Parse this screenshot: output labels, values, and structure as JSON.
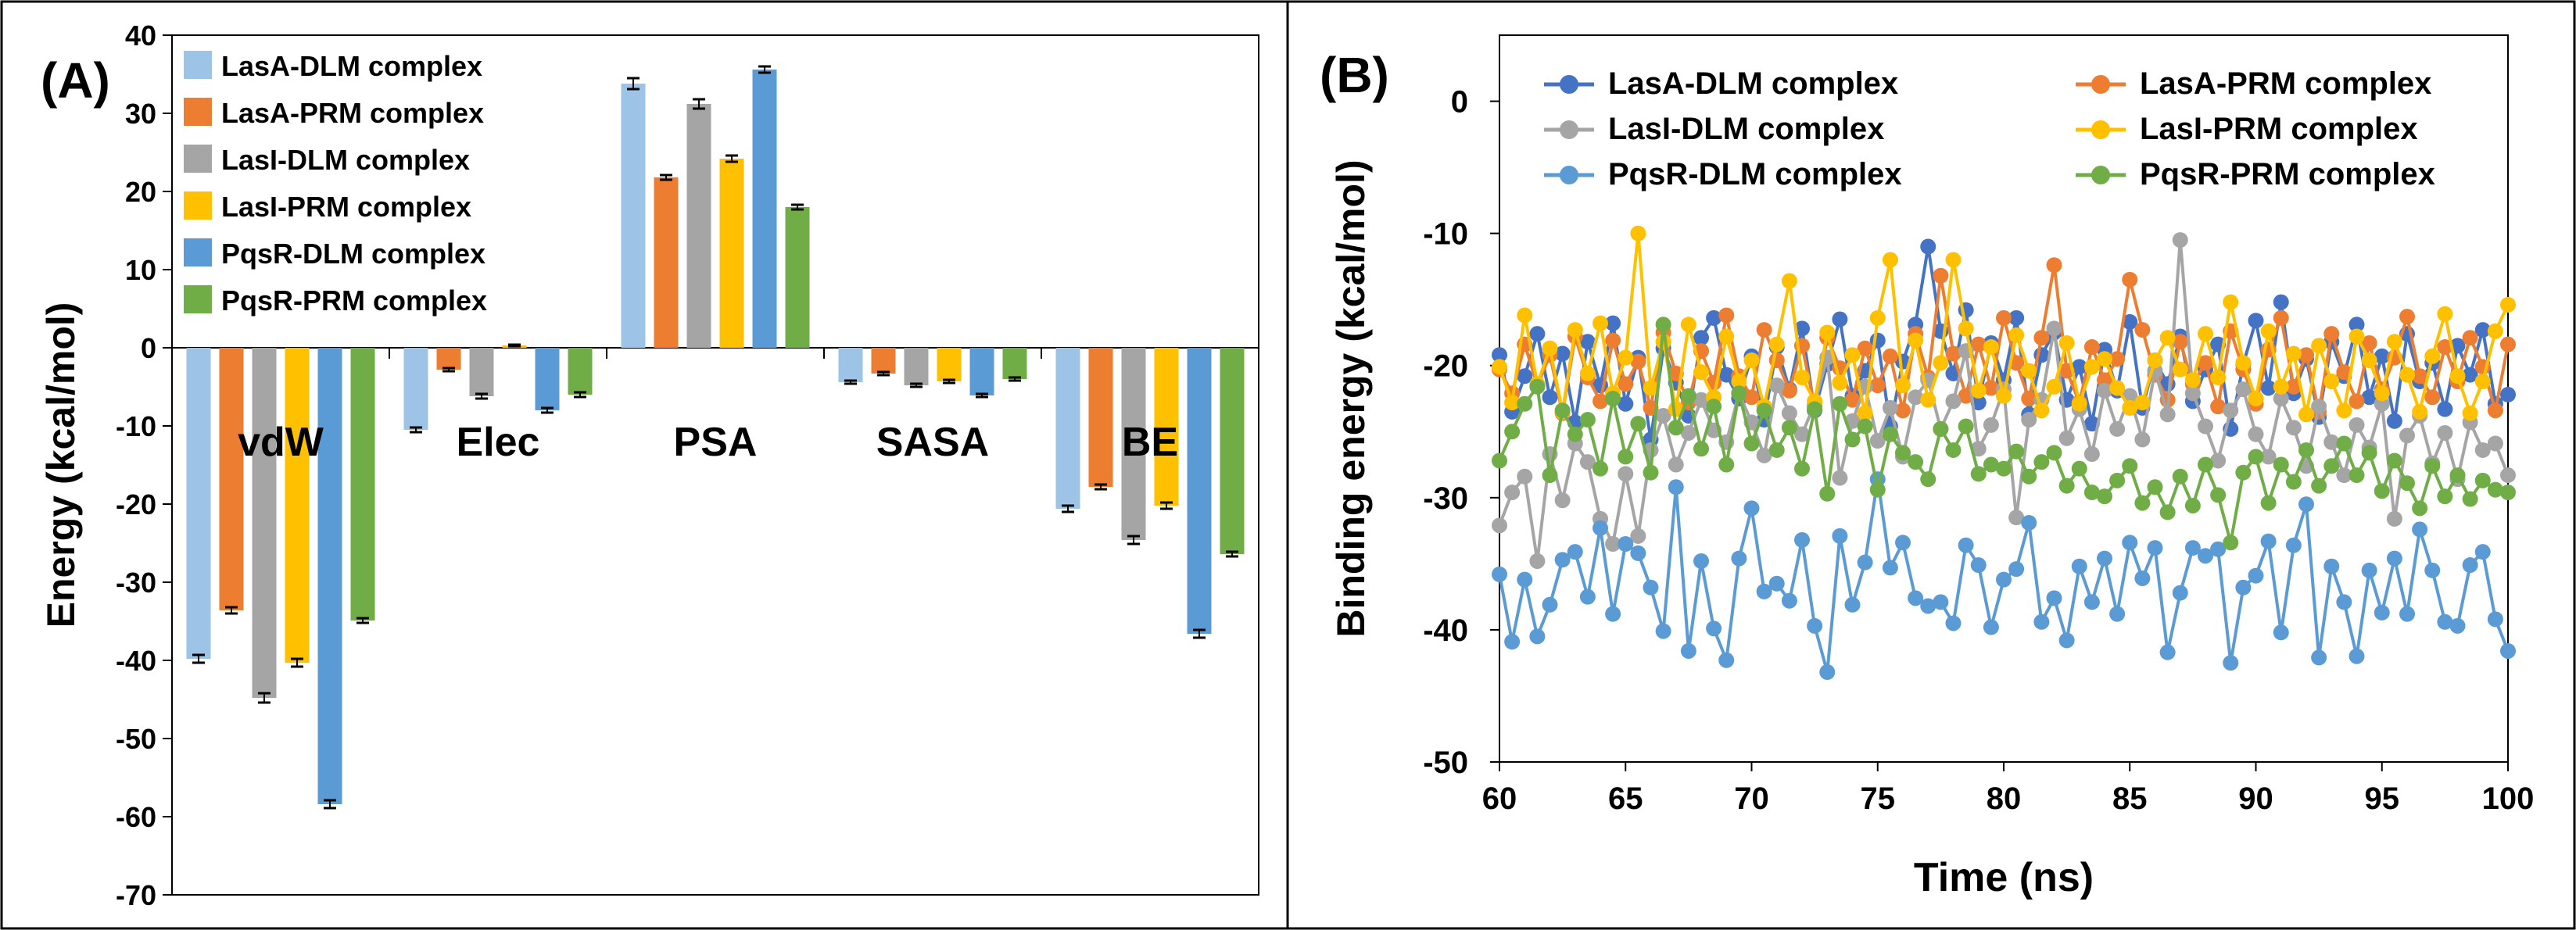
{
  "chart_data": [
    {
      "type": "bar",
      "panel_label": "(A)",
      "title": "",
      "xlabel": "",
      "ylabel": "Energy (kcal/mol)",
      "ylim": [
        -70,
        40
      ],
      "yticks": [
        40,
        30,
        20,
        10,
        0,
        -10,
        -20,
        -30,
        -40,
        -50,
        -60,
        -70
      ],
      "grid": false,
      "legend_position": "top-left",
      "categories": [
        "vdW",
        "Elec",
        "PSA",
        "SASA",
        "BE"
      ],
      "series": [
        {
          "name": "LasA-DLM complex",
          "color": "#9DC3E6",
          "values": [
            -39.8,
            -10.5,
            33.8,
            -4.4,
            -20.6
          ],
          "errors": [
            0.5,
            0.3,
            0.7,
            0.2,
            0.4
          ]
        },
        {
          "name": "LasA-PRM complex",
          "color": "#ED7D31",
          "values": [
            -33.6,
            -2.8,
            21.8,
            -3.3,
            -17.8
          ],
          "errors": [
            0.4,
            0.2,
            0.3,
            0.2,
            0.3
          ]
        },
        {
          "name": "LasI-DLM complex",
          "color": "#A5A5A5",
          "values": [
            -44.8,
            -6.2,
            31.2,
            -4.8,
            -24.6
          ],
          "errors": [
            0.6,
            0.3,
            0.6,
            0.2,
            0.5
          ]
        },
        {
          "name": "LasI-PRM complex",
          "color": "#FFC000",
          "values": [
            -40.3,
            0.3,
            24.2,
            -4.3,
            -20.2
          ],
          "errors": [
            0.5,
            0.1,
            0.4,
            0.2,
            0.4
          ]
        },
        {
          "name": "PqsR-DLM complex",
          "color": "#5B9BD5",
          "values": [
            -58.4,
            -8.0,
            35.6,
            -6.1,
            -36.6
          ],
          "errors": [
            0.5,
            0.3,
            0.4,
            0.2,
            0.5
          ]
        },
        {
          "name": "PqsR-PRM complex",
          "color": "#70AD47",
          "values": [
            -34.9,
            -6.0,
            18.0,
            -4.0,
            -26.4
          ],
          "errors": [
            0.3,
            0.3,
            0.3,
            0.2,
            0.3
          ]
        }
      ]
    },
    {
      "type": "line",
      "panel_label": "(B)",
      "title": "",
      "xlabel": "Time (ns)",
      "ylabel": "Binding energy (kcal/mol)",
      "xlim": [
        60,
        100
      ],
      "ylim": [
        -50,
        5
      ],
      "xticks": [
        60,
        65,
        70,
        75,
        80,
        85,
        90,
        95,
        100
      ],
      "yticks": [
        0,
        -10,
        -20,
        -30,
        -40,
        -50
      ],
      "grid": false,
      "legend_position": "top",
      "x": [
        60.0,
        60.5,
        61.0,
        61.5,
        62.0,
        62.5,
        63.0,
        63.5,
        64.0,
        64.5,
        65.0,
        65.5,
        66.0,
        66.5,
        67.0,
        67.5,
        68.0,
        68.5,
        69.0,
        69.5,
        70.0,
        70.5,
        71.0,
        71.5,
        72.0,
        72.5,
        73.0,
        73.5,
        74.0,
        74.5,
        75.0,
        75.5,
        76.0,
        76.5,
        77.0,
        77.5,
        78.0,
        78.5,
        79.0,
        79.5,
        80.0,
        80.5,
        81.0,
        81.5,
        82.0,
        82.5,
        83.0,
        83.5,
        84.0,
        84.5,
        85.0,
        85.5,
        86.0,
        86.5,
        87.0,
        87.5,
        88.0,
        88.5,
        89.0,
        89.5,
        90.0,
        90.5,
        91.0,
        91.5,
        92.0,
        92.5,
        93.0,
        93.5,
        94.0,
        94.5,
        95.0,
        95.5,
        96.0,
        96.5,
        97.0,
        97.5,
        98.0,
        98.5,
        99.0,
        99.5,
        100.0
      ],
      "series": [
        {
          "name": "LasA-DLM complex",
          "color": "#4472C4",
          "values": [
            -19.2,
            -23.5,
            -20.8,
            -17.6,
            -22.4,
            -19.1,
            -24.3,
            -18.2,
            -21.5,
            -16.8,
            -22.9,
            -19.4,
            -25.6,
            -18.7,
            -21.3,
            -23.8,
            -17.9,
            -16.4,
            -20.7,
            -22.5,
            -19.3,
            -24.1,
            -18.6,
            -21.8,
            -17.2,
            -23.4,
            -19.9,
            -16.5,
            -22.3,
            -20.4,
            -18.1,
            -24.6,
            -19.7,
            -16.9,
            -11.0,
            -17.4,
            -20.6,
            -15.8,
            -22.8,
            -18.3,
            -21.1,
            -16.4,
            -23.7,
            -19.2,
            -17.5,
            -22.6,
            -20.1,
            -24.4,
            -18.8,
            -21.9,
            -16.7,
            -23.2,
            -19.6,
            -21.4,
            -17.8,
            -22.7,
            -20.3,
            -18.4,
            -24.8,
            -19.9,
            -16.6,
            -21.7,
            -15.2,
            -22.1,
            -19.5,
            -23.9,
            -18.2,
            -20.8,
            -16.9,
            -22.4,
            -19.3,
            -24.2,
            -17.6,
            -21.2,
            -19.8,
            -23.3,
            -18.5,
            -20.7,
            -17.3,
            -22.9,
            -22.2
          ]
        },
        {
          "name": "LasA-PRM complex",
          "color": "#ED7D31",
          "values": [
            -20.3,
            -22.1,
            -18.4,
            -21.5,
            -19.2,
            -23.6,
            -17.8,
            -20.9,
            -22.7,
            -18.1,
            -21.4,
            -19.7,
            -23.2,
            -17.5,
            -20.6,
            -22.8,
            -18.9,
            -21.3,
            -16.2,
            -20.8,
            -22.4,
            -17.3,
            -19.6,
            -21.9,
            -18.5,
            -23.1,
            -17.9,
            -20.2,
            -22.6,
            -18.7,
            -21.5,
            -19.3,
            -23.4,
            -17.6,
            -20.9,
            -13.2,
            -19.1,
            -22.3,
            -18.4,
            -21.7,
            -16.4,
            -19.8,
            -22.5,
            -17.9,
            -12.4,
            -20.4,
            -22.8,
            -18.6,
            -21.1,
            -19.5,
            -13.5,
            -17.3,
            -20.7,
            -22.6,
            -18.2,
            -21.4,
            -19.8,
            -23.1,
            -17.4,
            -20.3,
            -22.9,
            -18.8,
            -16.4,
            -21.6,
            -19.2,
            -23.5,
            -17.6,
            -20.5,
            -22.7,
            -18.3,
            -21.8,
            -19.4,
            -16.3,
            -20.8,
            -22.4,
            -18.6,
            -21.2,
            -17.9,
            -20.1,
            -23.4,
            -18.4
          ]
        },
        {
          "name": "LasI-DLM complex",
          "color": "#A5A5A5",
          "values": [
            -32.1,
            -29.6,
            -28.4,
            -34.8,
            -26.7,
            -30.2,
            -25.9,
            -27.3,
            -31.6,
            -33.5,
            -28.2,
            -32.9,
            -26.4,
            -23.8,
            -27.5,
            -25.1,
            -22.6,
            -24.9,
            -25.8,
            -22.1,
            -24.3,
            -26.8,
            -21.5,
            -23.6,
            -25.2,
            -22.9,
            -19.4,
            -28.5,
            -24.2,
            -21.6,
            -25.7,
            -23.2,
            -26.9,
            -22.4,
            -21.1,
            -24.8,
            -22.7,
            -18.9,
            -26.3,
            -24.5,
            -21.8,
            -31.5,
            -24.1,
            -22.6,
            -17.2,
            -25.5,
            -23.3,
            -26.7,
            -21.9,
            -24.8,
            -22.3,
            -25.6,
            -20.4,
            -23.7,
            -10.5,
            -22.1,
            -24.6,
            -27.2,
            -23.4,
            -21.8,
            -25.2,
            -26.9,
            -22.5,
            -24.7,
            -27.6,
            -23.1,
            -25.8,
            -28.3,
            -24.5,
            -26.2,
            -22.9,
            -31.6,
            -25.3,
            -23.8,
            -27.4,
            -25.1,
            -28.6,
            -24.3,
            -26.4,
            -25.9,
            -28.3
          ]
        },
        {
          "name": "LasI-PRM complex",
          "color": "#FFC000",
          "values": [
            -20.1,
            -22.8,
            -16.2,
            -21.4,
            -18.7,
            -23.5,
            -17.3,
            -20.6,
            -16.8,
            -22.1,
            -19.4,
            -10.0,
            -21.7,
            -18.2,
            -23.3,
            -16.9,
            -20.5,
            -22.4,
            -17.8,
            -21.2,
            -19.6,
            -23.1,
            -18.4,
            -13.6,
            -20.9,
            -22.7,
            -17.5,
            -21.3,
            -19.2,
            -23.6,
            -16.4,
            -12.0,
            -21.5,
            -18.1,
            -22.6,
            -19.8,
            -12.0,
            -17.2,
            -21.9,
            -18.6,
            -22.3,
            -17.7,
            -20.4,
            -23.4,
            -21.6,
            -18.3,
            -22.9,
            -20.1,
            -19.5,
            -21.7,
            -23.2,
            -22.8,
            -19.6,
            -17.9,
            -20.3,
            -21.1,
            -17.6,
            -20.9,
            -15.2,
            -19.8,
            -22.5,
            -17.4,
            -21.6,
            -19.1,
            -23.7,
            -18.5,
            -21.2,
            -23.4,
            -17.8,
            -19.6,
            -22.1,
            -18.2,
            -20.7,
            -23.5,
            -19.3,
            -16.1,
            -20.8,
            -23.6,
            -21.2,
            -17.4,
            -15.4
          ]
        },
        {
          "name": "PqsR-DLM complex",
          "color": "#5B9BD5",
          "values": [
            -35.8,
            -40.9,
            -36.2,
            -40.5,
            -38.1,
            -34.7,
            -34.1,
            -37.5,
            -32.3,
            -38.8,
            -33.5,
            -34.2,
            -36.8,
            -40.1,
            -29.2,
            -41.6,
            -34.8,
            -39.9,
            -42.3,
            -34.6,
            -30.8,
            -37.1,
            -36.5,
            -37.8,
            -33.2,
            -39.7,
            -43.2,
            -32.9,
            -38.1,
            -34.9,
            -28.6,
            -35.3,
            -33.4,
            -37.6,
            -38.2,
            -37.9,
            -39.5,
            -33.6,
            -35.1,
            -39.8,
            -36.2,
            -35.4,
            -31.9,
            -39.4,
            -37.6,
            -40.8,
            -35.2,
            -37.9,
            -34.6,
            -38.8,
            -33.4,
            -36.1,
            -33.8,
            -41.7,
            -37.2,
            -33.8,
            -34.4,
            -33.9,
            -42.5,
            -36.8,
            -35.9,
            -33.3,
            -40.2,
            -33.6,
            -30.5,
            -42.1,
            -35.2,
            -37.9,
            -42.0,
            -35.5,
            -38.7,
            -34.6,
            -38.8,
            -32.4,
            -35.5,
            -39.4,
            -39.7,
            -35.1,
            -34.1,
            -39.2,
            -41.6
          ]
        },
        {
          "name": "PqsR-PRM complex",
          "color": "#70AD47",
          "values": [
            -27.2,
            -25.0,
            -22.9,
            -21.6,
            -28.3,
            -23.4,
            -25.2,
            -24.1,
            -27.8,
            -22.5,
            -26.9,
            -24.4,
            -28.1,
            -16.9,
            -24.7,
            -22.3,
            -26.3,
            -23.1,
            -27.5,
            -22.1,
            -25.9,
            -23.4,
            -26.4,
            -24.7,
            -27.8,
            -23.3,
            -29.7,
            -22.9,
            -25.6,
            -24.6,
            -29.4,
            -25.2,
            -26.6,
            -27.3,
            -28.6,
            -24.8,
            -26.4,
            -24.6,
            -28.2,
            -27.5,
            -27.8,
            -26.5,
            -28.4,
            -27.3,
            -26.6,
            -29.1,
            -27.8,
            -29.6,
            -29.9,
            -28.7,
            -27.6,
            -30.4,
            -29.2,
            -31.1,
            -28.4,
            -30.6,
            -27.5,
            -29.8,
            -33.4,
            -28.1,
            -26.9,
            -30.4,
            -27.5,
            -28.8,
            -26.4,
            -29.1,
            -27.6,
            -25.9,
            -28.3,
            -26.6,
            -29.5,
            -27.2,
            -28.9,
            -30.8,
            -27.6,
            -29.9,
            -28.3,
            -30.1,
            -28.7,
            -29.4,
            -29.6
          ]
        }
      ]
    }
  ]
}
